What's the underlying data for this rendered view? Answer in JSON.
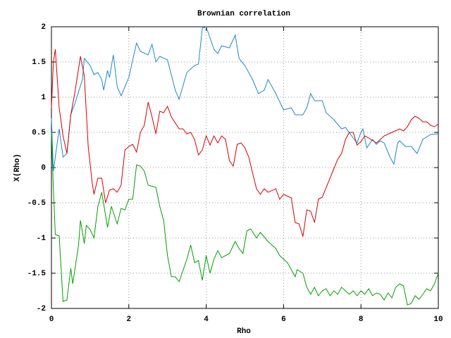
{
  "chart_data": {
    "type": "line",
    "title": "Brownian correlation",
    "x_label": "Rho",
    "y_label": "X(Rho)",
    "xlim": [
      0,
      10
    ],
    "ylim": [
      -2,
      2
    ],
    "xticks": [
      0,
      2,
      4,
      6,
      8,
      10
    ],
    "yticks": [
      -2,
      -1.5,
      -1,
      -0.5,
      0,
      0.5,
      1,
      1.5,
      2
    ],
    "grid": true,
    "series": [
      {
        "color": "#1f87cf",
        "x": [
          0,
          0.05,
          0.2,
          0.3,
          0.4,
          0.5,
          0.6,
          0.8,
          0.85,
          1.0,
          1.1,
          1.2,
          1.3,
          1.35,
          1.45,
          1.5,
          1.6,
          1.7,
          1.8,
          1.9,
          2.0,
          2.2,
          2.3,
          2.5,
          2.6,
          2.7,
          2.8,
          3.0,
          3.2,
          3.3,
          3.5,
          3.7,
          3.8,
          3.9,
          4.0,
          4.2,
          4.3,
          4.4,
          4.6,
          4.75,
          4.85,
          5.0,
          5.2,
          5.35,
          5.5,
          5.6,
          5.8,
          6.0,
          6.2,
          6.3,
          6.5,
          6.6,
          6.7,
          6.8,
          7.0,
          7.1,
          7.3,
          7.5,
          7.6,
          7.8,
          7.9,
          8.0,
          8.05,
          8.15,
          8.3,
          8.4,
          8.5,
          8.6,
          8.75,
          8.85,
          8.95,
          9.0,
          9.15,
          9.3,
          9.45,
          9.6,
          9.8,
          10.0
        ],
        "values": [
          0.7,
          -0.05,
          0.55,
          0.15,
          0.2,
          0.75,
          0.9,
          1.25,
          1.55,
          1.45,
          1.32,
          1.35,
          1.25,
          1.1,
          1.38,
          1.28,
          1.6,
          1.15,
          1.02,
          1.15,
          1.28,
          1.77,
          1.65,
          1.6,
          1.75,
          1.5,
          1.58,
          1.53,
          1.1,
          0.97,
          1.35,
          1.45,
          1.47,
          1.98,
          2.0,
          1.68,
          1.62,
          1.73,
          1.7,
          1.88,
          1.55,
          1.45,
          1.25,
          1.05,
          1.1,
          1.25,
          1.05,
          0.82,
          0.85,
          0.75,
          0.75,
          0.85,
          1.05,
          0.95,
          0.95,
          0.78,
          0.68,
          0.55,
          0.57,
          0.42,
          0.35,
          0.5,
          0.55,
          0.28,
          0.4,
          0.33,
          0.38,
          0.35,
          0.15,
          0.05,
          0.35,
          0.38,
          0.3,
          0.3,
          0.2,
          0.4,
          0.47,
          0.48
        ]
      },
      {
        "color": "#d80000",
        "x": [
          0,
          0.05,
          0.1,
          0.2,
          0.3,
          0.4,
          0.5,
          0.6,
          0.75,
          0.85,
          0.95,
          1.05,
          1.1,
          1.2,
          1.3,
          1.4,
          1.5,
          1.6,
          1.7,
          1.8,
          1.9,
          2.0,
          2.1,
          2.2,
          2.3,
          2.4,
          2.5,
          2.6,
          2.7,
          2.8,
          2.9,
          3.0,
          3.1,
          3.3,
          3.4,
          3.5,
          3.6,
          3.7,
          3.8,
          3.9,
          4.0,
          4.1,
          4.2,
          4.3,
          4.4,
          4.5,
          4.6,
          4.7,
          4.8,
          4.9,
          5.0,
          5.1,
          5.2,
          5.3,
          5.4,
          5.5,
          5.6,
          5.8,
          5.9,
          6.0,
          6.2,
          6.3,
          6.4,
          6.5,
          6.6,
          6.7,
          6.8,
          6.9,
          7.0,
          7.2,
          7.4,
          7.5,
          7.6,
          7.7,
          7.8,
          7.9,
          8.0,
          8.1,
          8.2,
          8.4,
          8.6,
          8.8,
          9.0,
          9.1,
          9.2,
          9.3,
          9.4,
          9.5,
          9.6,
          9.7,
          9.8,
          9.9,
          10.0
        ],
        "values": [
          0.85,
          1.5,
          1.68,
          0.85,
          0.45,
          0.2,
          0.75,
          1.05,
          1.58,
          1.3,
          0.3,
          -0.2,
          -0.38,
          -0.15,
          -0.15,
          -0.5,
          -0.32,
          -0.3,
          -0.35,
          -0.25,
          0.25,
          0.3,
          0.33,
          0.22,
          0.5,
          0.6,
          0.93,
          0.72,
          0.48,
          0.8,
          0.78,
          0.87,
          0.72,
          0.55,
          0.55,
          0.48,
          0.5,
          0.4,
          0.18,
          0.25,
          0.45,
          0.32,
          0.45,
          0.35,
          0.45,
          0.4,
          0.1,
          0.02,
          0.33,
          0.35,
          0.28,
          0.15,
          -0.08,
          -0.3,
          -0.38,
          -0.3,
          -0.35,
          -0.3,
          -0.45,
          -0.38,
          -0.43,
          -0.78,
          -0.8,
          -0.98,
          -0.6,
          -0.62,
          -0.78,
          -0.45,
          -0.42,
          -0.15,
          0.12,
          0.2,
          0.4,
          0.5,
          0.5,
          0.32,
          0.37,
          0.45,
          0.42,
          0.35,
          0.45,
          0.5,
          0.55,
          0.52,
          0.58,
          0.68,
          0.73,
          0.7,
          0.65,
          0.65,
          0.6,
          0.58,
          0.62
        ]
      },
      {
        "color": "#00a000",
        "x": [
          0,
          0.05,
          0.1,
          0.2,
          0.3,
          0.4,
          0.5,
          0.55,
          0.7,
          0.75,
          0.85,
          0.9,
          1.0,
          1.1,
          1.2,
          1.3,
          1.45,
          1.55,
          1.7,
          1.8,
          1.9,
          2.0,
          2.1,
          2.2,
          2.3,
          2.4,
          2.5,
          2.7,
          2.8,
          2.9,
          3.0,
          3.1,
          3.2,
          3.3,
          3.5,
          3.6,
          3.7,
          3.8,
          3.9,
          4.0,
          4.1,
          4.2,
          4.3,
          4.4,
          4.6,
          4.75,
          4.85,
          4.95,
          5.05,
          5.15,
          5.3,
          5.4,
          5.6,
          5.8,
          5.9,
          6.1,
          6.2,
          6.3,
          6.35,
          6.5,
          6.6,
          6.7,
          6.8,
          6.9,
          7.0,
          7.1,
          7.2,
          7.3,
          7.4,
          7.5,
          7.6,
          7.7,
          7.8,
          7.9,
          8.0,
          8.1,
          8.2,
          8.3,
          8.4,
          8.5,
          8.6,
          8.7,
          8.8,
          8.9,
          9.0,
          9.1,
          9.2,
          9.3,
          9.4,
          9.5,
          9.6,
          9.7,
          9.8,
          9.9,
          10.0
        ],
        "values": [
          0.5,
          -0.3,
          -0.95,
          -0.97,
          -1.9,
          -1.88,
          -1.43,
          -1.65,
          -1.1,
          -0.75,
          -1.08,
          -0.82,
          -0.88,
          -1.0,
          -0.55,
          -0.35,
          -0.85,
          -0.55,
          -0.8,
          -0.58,
          -0.6,
          -0.45,
          -0.45,
          0.04,
          0.02,
          -0.05,
          -0.25,
          -0.28,
          -0.55,
          -0.75,
          -1.25,
          -1.55,
          -1.55,
          -1.62,
          -1.3,
          -1.1,
          -1.35,
          -1.32,
          -1.6,
          -1.25,
          -1.5,
          -1.3,
          -1.18,
          -1.28,
          -1.22,
          -1.05,
          -1.15,
          -1.22,
          -0.9,
          -0.87,
          -1.0,
          -0.92,
          -1.05,
          -1.15,
          -1.25,
          -1.35,
          -1.45,
          -1.55,
          -1.45,
          -1.5,
          -1.7,
          -1.8,
          -1.7,
          -1.82,
          -1.75,
          -1.72,
          -1.82,
          -1.75,
          -1.8,
          -1.7,
          -1.75,
          -1.8,
          -1.75,
          -1.82,
          -1.75,
          -1.8,
          -1.72,
          -1.82,
          -1.78,
          -1.8,
          -1.88,
          -1.78,
          -1.85,
          -1.7,
          -1.65,
          -1.68,
          -1.95,
          -1.93,
          -1.82,
          -1.87,
          -1.8,
          -1.72,
          -1.75,
          -1.65,
          -1.5
        ]
      }
    ]
  }
}
